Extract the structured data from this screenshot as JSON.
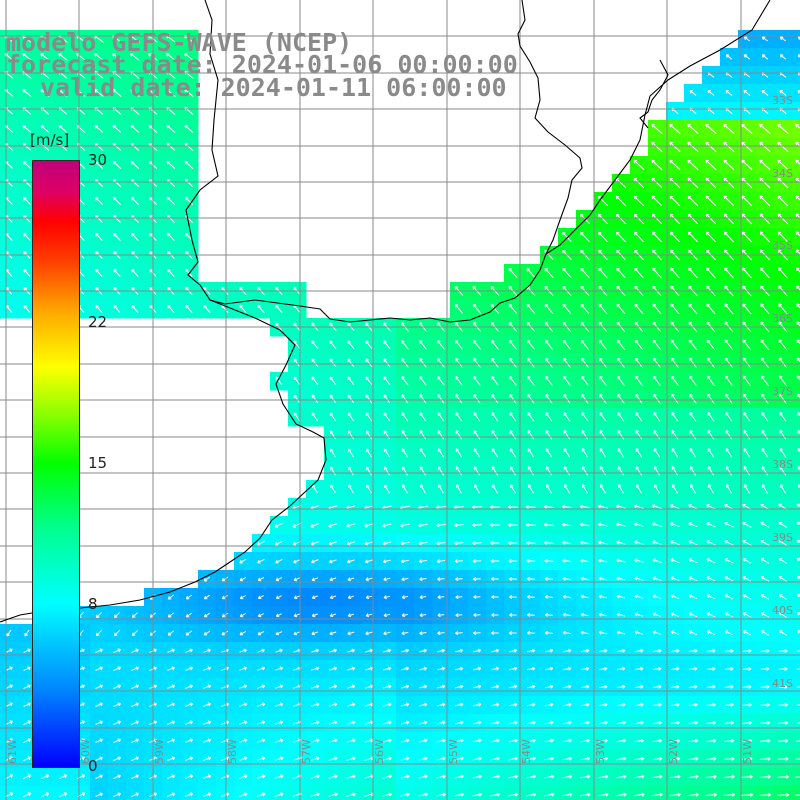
{
  "title": {
    "line1": "modelo GEFS-WAVE (NCEP)",
    "line2": "forecast date: 2024-01-06 00:00:00",
    "line3": "valid date: 2024-01-11 06:00:00"
  },
  "colorbar": {
    "unit": "[m/s]",
    "range": [
      0,
      30
    ],
    "ticks": [
      {
        "value": 30,
        "label": "30"
      },
      {
        "value": 22,
        "label": "22"
      },
      {
        "value": 15,
        "label": "15"
      },
      {
        "value": 8,
        "label": "8"
      },
      {
        "value": 0,
        "label": "0"
      }
    ],
    "colors": [
      "#0000ff",
      "#0088ff",
      "#00ffff",
      "#00ff88",
      "#00ff00",
      "#88ff00",
      "#ffff00",
      "#ffaa00",
      "#ff4400",
      "#ff0000",
      "#c0007a"
    ]
  },
  "map": {
    "field": "wind speed with direction arrows",
    "lat_labels": [
      "33S",
      "34S",
      "35S",
      "36S",
      "37S",
      "38S",
      "39S",
      "40S",
      "41S"
    ],
    "lon_labels": [
      "61W",
      "60W",
      "59W",
      "58W",
      "57W",
      "56W",
      "55W",
      "54W",
      "53W",
      "52W",
      "51W"
    ]
  }
}
